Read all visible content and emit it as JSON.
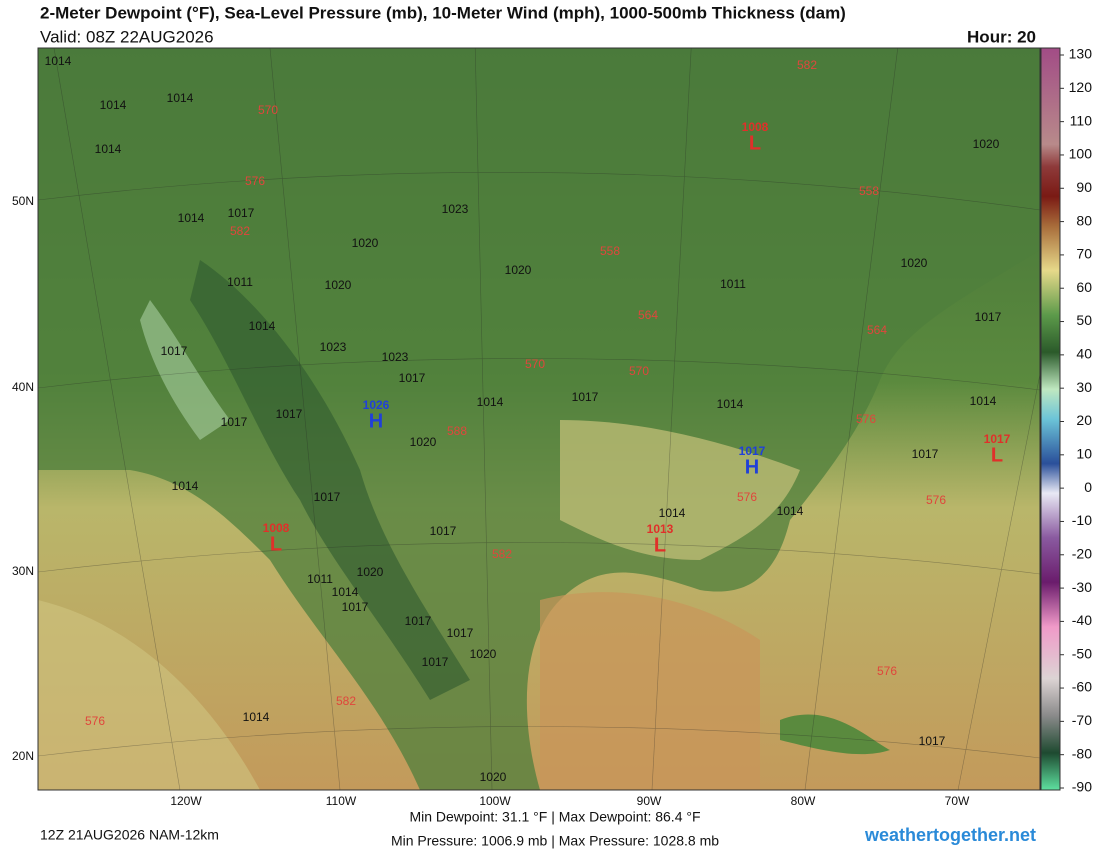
{
  "header": {
    "title": "2-Meter Dewpoint (°F), Sea-Level Pressure (mb), 10-Meter Wind (mph), 1000-500mb Thickness (dam)",
    "valid": "Valid: 08Z 22AUG2026",
    "hour": "Hour: 20"
  },
  "latitude_labels": [
    "50N",
    "40N",
    "30N",
    "20N"
  ],
  "longitude_labels": [
    "120W",
    "110W",
    "100W",
    "90W",
    "80W",
    "70W"
  ],
  "colorbar": {
    "ticks": [
      130,
      120,
      110,
      100,
      90,
      80,
      70,
      60,
      50,
      40,
      30,
      20,
      10,
      0,
      -10,
      -20,
      -30,
      -40,
      -50,
      -60,
      -70,
      -80,
      -90
    ]
  },
  "isobar_labels": [
    "1014",
    "1014",
    "1014",
    "1014",
    "1014",
    "1017",
    "1023",
    "1020",
    "1020",
    "1011",
    "1014",
    "1020",
    "1017",
    "1023",
    "1023",
    "1017",
    "1017",
    "1017",
    "1020",
    "1014",
    "1017",
    "1014",
    "1014",
    "1017",
    "1014",
    "1017",
    "1017",
    "1014",
    "1014",
    "1011",
    "1014",
    "1017",
    "1020",
    "1017",
    "1017",
    "1020",
    "1017",
    "1014",
    "1017",
    "1020",
    "1020",
    "1020",
    "1017",
    "1011"
  ],
  "thickness_labels": [
    "570",
    "576",
    "582",
    "558",
    "564",
    "570",
    "570",
    "588",
    "558",
    "564",
    "582",
    "576",
    "576",
    "576",
    "582",
    "582",
    "576",
    "576"
  ],
  "pressure_centers": [
    {
      "symbol": "L",
      "pressure": "1008"
    },
    {
      "symbol": "H",
      "pressure": "1026"
    },
    {
      "symbol": "H",
      "pressure": "1017"
    },
    {
      "symbol": "L",
      "pressure": "1013"
    },
    {
      "symbol": "L",
      "pressure": "1017"
    },
    {
      "symbol": "L",
      "pressure": "1008"
    }
  ],
  "footer": {
    "run": "12Z 21AUG2026 NAM-12km",
    "dewpoint_range": "Min Dewpoint: 31.1 °F | Max Dewpoint: 86.4 °F",
    "pressure_range": "Min Pressure: 1006.9 mb | Max Pressure: 1028.8 mb",
    "site": "weathertogether.net"
  }
}
